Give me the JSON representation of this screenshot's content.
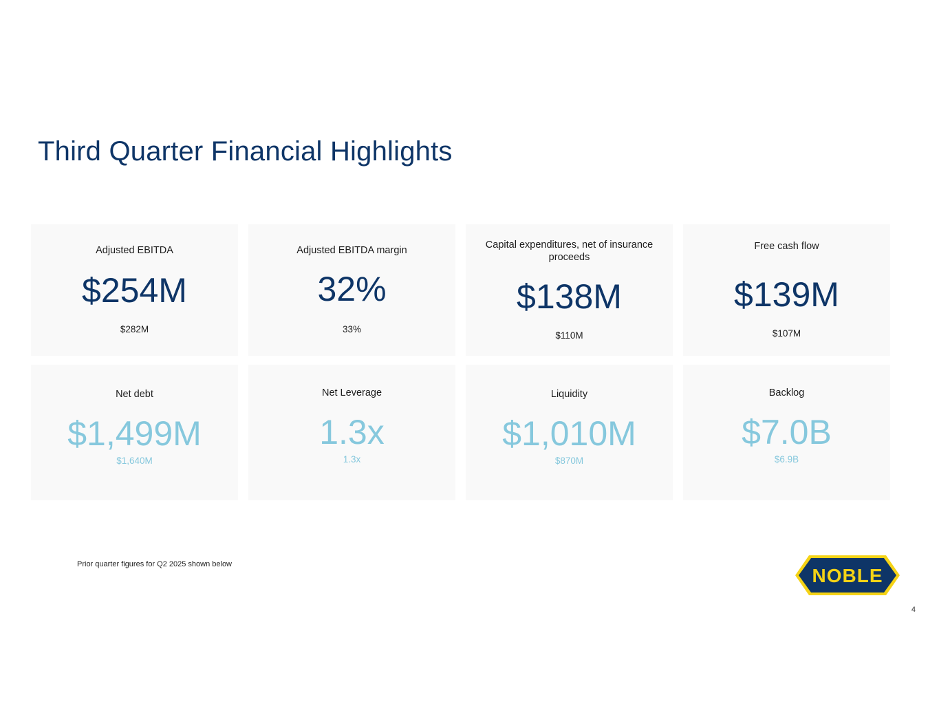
{
  "slide": {
    "title": "Third Quarter Financial Highlights",
    "footnote": "Prior quarter figures for Q2 2025 shown below",
    "page_number": "4",
    "logo_text": "NOBLE"
  },
  "colors": {
    "title": "#0e3567",
    "metric_dark": "#0e3567",
    "metric_light": "#86c8dd",
    "card_bg": "#f9f9f9",
    "logo_yellow": "#f5d316",
    "logo_navy": "#0e3567"
  },
  "cards": [
    {
      "label": "Adjusted EBITDA",
      "value": "$254M",
      "prior": "$282M"
    },
    {
      "label": "Adjusted EBITDA margin",
      "value": "32%",
      "prior": "33%"
    },
    {
      "label": "Capital expenditures, net of insurance proceeds",
      "value": "$138M",
      "prior": "$110M"
    },
    {
      "label": "Free cash flow",
      "value": "$139M",
      "prior": "$107M"
    },
    {
      "label": "Net debt",
      "value": "$1,499M",
      "prior": "$1,640M"
    },
    {
      "label": "Net Leverage",
      "value": "1.3x",
      "prior": "1.3x"
    },
    {
      "label": "Liquidity",
      "value": "$1,010M",
      "prior": "$870M"
    },
    {
      "label": "Backlog",
      "value": "$7.0B",
      "prior": "$6.9B"
    }
  ]
}
